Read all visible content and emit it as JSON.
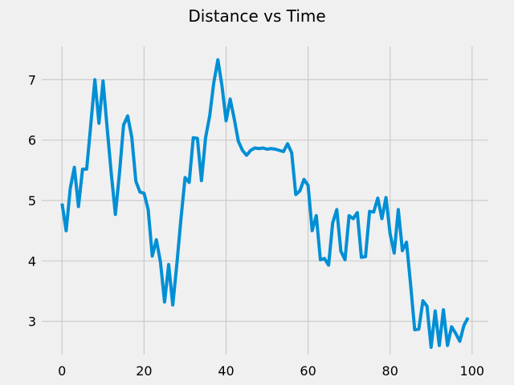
{
  "chart_data": {
    "type": "line",
    "title": "Distance vs Time",
    "xlabel": "",
    "ylabel": "",
    "xlim": [
      -4.95,
      103.95
    ],
    "ylim": [
      2.45,
      7.55
    ],
    "xticks": [
      0,
      20,
      40,
      60,
      80,
      100
    ],
    "yticks": [
      3,
      4,
      5,
      6,
      7
    ],
    "grid": true,
    "legend": "none",
    "series_color": "#008fd5",
    "grid_color": "#cbcbcb",
    "background": "#f0f0f0",
    "series": [
      {
        "x": [
          0,
          1,
          2,
          3,
          4,
          5,
          6,
          7,
          8,
          9,
          10,
          11,
          12,
          13,
          14,
          15,
          16,
          17,
          18,
          19,
          20,
          21,
          22,
          23,
          24,
          25,
          26,
          27,
          28,
          29,
          30,
          31,
          32,
          33,
          34,
          35,
          36,
          37,
          38,
          39,
          40,
          41,
          42,
          43,
          44,
          45,
          46,
          47,
          48,
          49,
          50,
          51,
          52,
          53,
          54,
          55,
          56,
          57,
          58,
          59,
          60,
          61,
          62,
          63,
          64,
          65,
          66,
          67,
          68,
          69,
          70,
          71,
          72,
          73,
          74,
          75,
          76,
          77,
          78,
          79,
          80,
          81,
          82,
          83,
          84,
          85,
          86,
          87,
          88,
          89,
          90,
          91,
          92,
          93,
          94,
          95,
          96,
          97,
          98,
          99
        ],
        "values": [
          4.95,
          4.5,
          5.2,
          5.55,
          4.9,
          5.52,
          5.52,
          6.25,
          7.0,
          6.28,
          6.98,
          6.2,
          5.45,
          4.77,
          5.45,
          6.25,
          6.4,
          6.05,
          5.32,
          5.14,
          5.12,
          4.85,
          4.08,
          4.35,
          3.98,
          3.32,
          3.94,
          3.27,
          3.95,
          4.7,
          5.38,
          5.3,
          6.04,
          6.03,
          5.33,
          6.04,
          6.4,
          6.95,
          7.33,
          6.9,
          6.32,
          6.68,
          6.35,
          5.98,
          5.83,
          5.75,
          5.83,
          5.87,
          5.86,
          5.87,
          5.85,
          5.86,
          5.85,
          5.83,
          5.81,
          5.94,
          5.79,
          5.1,
          5.16,
          5.35,
          5.25,
          4.5,
          4.75,
          4.02,
          4.04,
          3.93,
          4.63,
          4.85,
          4.16,
          4.02,
          4.75,
          4.7,
          4.8,
          4.06,
          4.07,
          4.82,
          4.81,
          5.04,
          4.7,
          5.05,
          4.45,
          4.13,
          4.85,
          4.17,
          4.31,
          3.61,
          2.86,
          2.87,
          3.34,
          3.25,
          2.57,
          3.17,
          2.6,
          3.19,
          2.6,
          2.91,
          2.8,
          2.67,
          2.93,
          3.06
        ]
      }
    ]
  }
}
